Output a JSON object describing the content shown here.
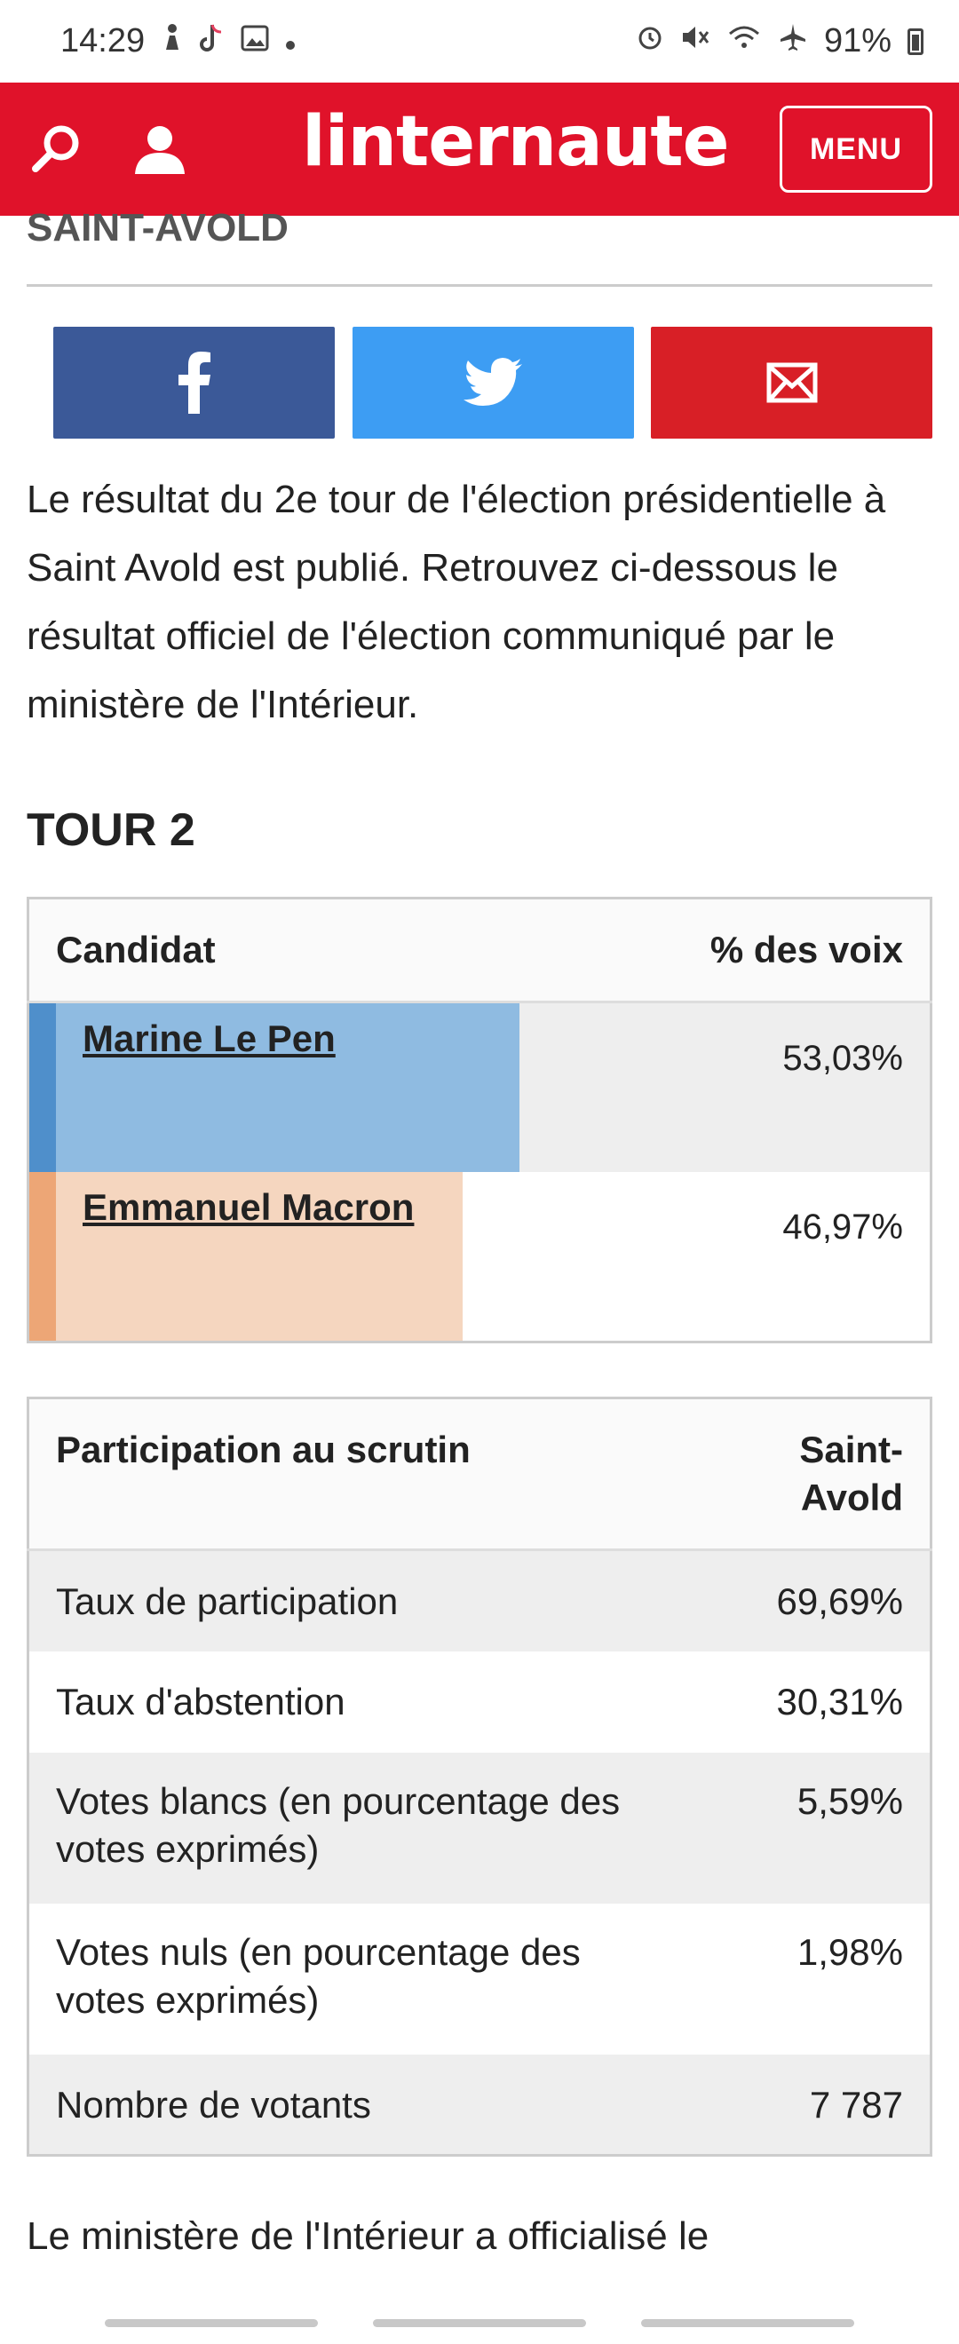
{
  "status_bar": {
    "time": "14:29",
    "battery": "91%",
    "left_icons": [
      "steps-icon",
      "tiktok-icon",
      "image-icon",
      "dot-icon"
    ],
    "right_icons": [
      "alarm-icon",
      "mute-icon",
      "wifi-icon",
      "airplane-icon",
      "battery-icon"
    ]
  },
  "header": {
    "logo": "linternaute",
    "menu_label": "MENU",
    "accent_color": "#e0122a"
  },
  "page": {
    "section_heading": "SAINT-AVOLD",
    "share": [
      "facebook-icon",
      "twitter-icon",
      "email-icon"
    ],
    "intro": "Le résultat du 2e tour de l'élection présidentielle à Saint Avold est publié. Retrouvez ci-dessous le résultat officiel de l'élection communiqué par le ministère de l'Intérieur.",
    "tour_title": "TOUR 2",
    "outro": "Le ministère de l'Intérieur a officialisé le"
  },
  "results": {
    "col_candidate": "Candidat",
    "col_votes": "% des voix",
    "rows": [
      {
        "name": "Marine Le Pen",
        "pct": "53,03%",
        "share": 0.5303,
        "strip_color": "#4f8fcb",
        "fill_color": "#8fbbe1"
      },
      {
        "name": "Emmanuel Macron",
        "pct": "46,97%",
        "share": 0.4697,
        "strip_color": "#eda676",
        "fill_color": "#f5d6bf"
      }
    ]
  },
  "participation": {
    "col_label": "Participation au scrutin",
    "col_place": "Saint-Avold",
    "rows": [
      {
        "label": "Taux de participation",
        "value": "69,69%"
      },
      {
        "label": "Taux d'abstention",
        "value": "30,31%"
      },
      {
        "label": "Votes blancs (en pourcentage des votes exprimés)",
        "value": "5,59%"
      },
      {
        "label": "Votes nuls (en pourcentage des votes exprimés)",
        "value": "1,98%"
      },
      {
        "label": "Nombre de votants",
        "value": "7 787"
      }
    ]
  }
}
